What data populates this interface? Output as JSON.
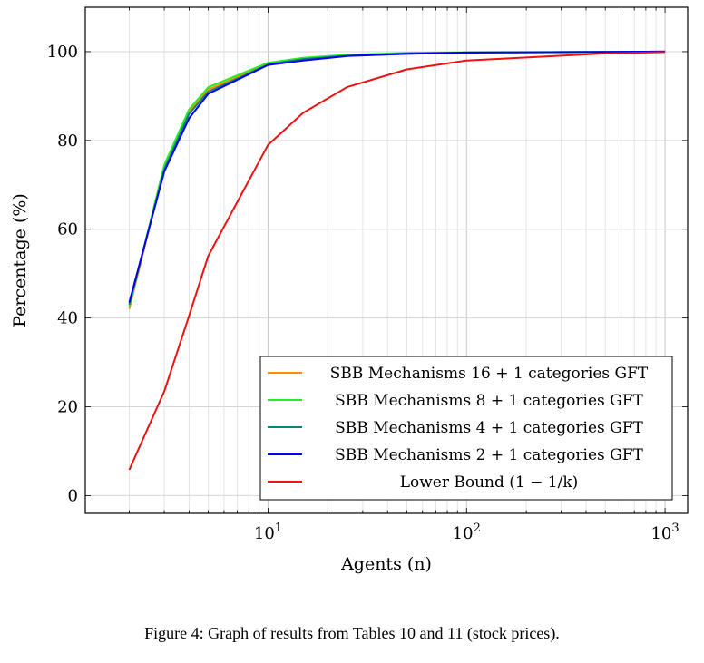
{
  "chart_data": {
    "type": "line",
    "title": "",
    "xlabel": "Agents (n)",
    "ylabel": "Percentage (%)",
    "x_scale": "log",
    "xlim": [
      1.2,
      1300
    ],
    "ylim": [
      -4,
      110
    ],
    "grid": true,
    "legend_position": "bottom-right",
    "x_ticks": [
      {
        "value": 10,
        "base": "10",
        "exp": "1"
      },
      {
        "value": 100,
        "base": "10",
        "exp": "2"
      },
      {
        "value": 1000,
        "base": "10",
        "exp": "3"
      }
    ],
    "y_ticks": [
      {
        "value": 0,
        "label": "0"
      },
      {
        "value": 20,
        "label": "20"
      },
      {
        "value": 40,
        "label": "40"
      },
      {
        "value": 60,
        "label": "60"
      },
      {
        "value": 80,
        "label": "80"
      },
      {
        "value": 100,
        "label": "100"
      }
    ],
    "series": [
      {
        "name": "SBB Mechanisms 16 + 1 categories GFT",
        "color": "#ff8c00",
        "x": [
          2,
          3,
          4,
          5,
          10,
          15,
          25,
          50,
          100,
          500,
          1000
        ],
        "y": [
          42.0,
          74.0,
          86.5,
          91.5,
          97.2,
          98.5,
          99.2,
          99.6,
          99.8,
          99.95,
          100.0
        ]
      },
      {
        "name": "SBB Mechanisms 8 + 1 categories GFT",
        "color": "#22ee22",
        "x": [
          2,
          3,
          4,
          5,
          10,
          15,
          25,
          50,
          100,
          500,
          1000
        ],
        "y": [
          42.5,
          74.5,
          87.0,
          92.0,
          97.5,
          98.6,
          99.3,
          99.7,
          99.85,
          99.95,
          100.0
        ]
      },
      {
        "name": "SBB Mechanisms 4 + 1 categories GFT",
        "color": "#0a8080",
        "x": [
          2,
          3,
          4,
          5,
          10,
          15,
          25,
          50,
          100,
          500,
          1000
        ],
        "y": [
          43.0,
          73.5,
          86.0,
          91.0,
          97.1,
          98.3,
          99.1,
          99.6,
          99.8,
          99.95,
          100.0
        ]
      },
      {
        "name": "SBB Mechanisms 2 + 1 categories GFT",
        "color": "#0000ee",
        "x": [
          2,
          3,
          4,
          5,
          10,
          15,
          25,
          50,
          100,
          500,
          1000
        ],
        "y": [
          43.5,
          73.0,
          85.0,
          90.5,
          97.0,
          98.0,
          99.0,
          99.5,
          99.8,
          99.95,
          100.0
        ]
      },
      {
        "name": "Lower Bound (1 − 1/k)",
        "color": "#ee1111",
        "x": [
          2,
          3,
          4,
          5,
          10,
          15,
          25,
          50,
          100,
          500,
          1000
        ],
        "y": [
          5.8,
          23.5,
          40.5,
          54.0,
          79.0,
          86.2,
          92.0,
          96.0,
          98.0,
          99.6,
          99.9
        ]
      }
    ]
  },
  "caption": "Figure 4: Graph of results from Tables 10 and 11 (stock prices)."
}
